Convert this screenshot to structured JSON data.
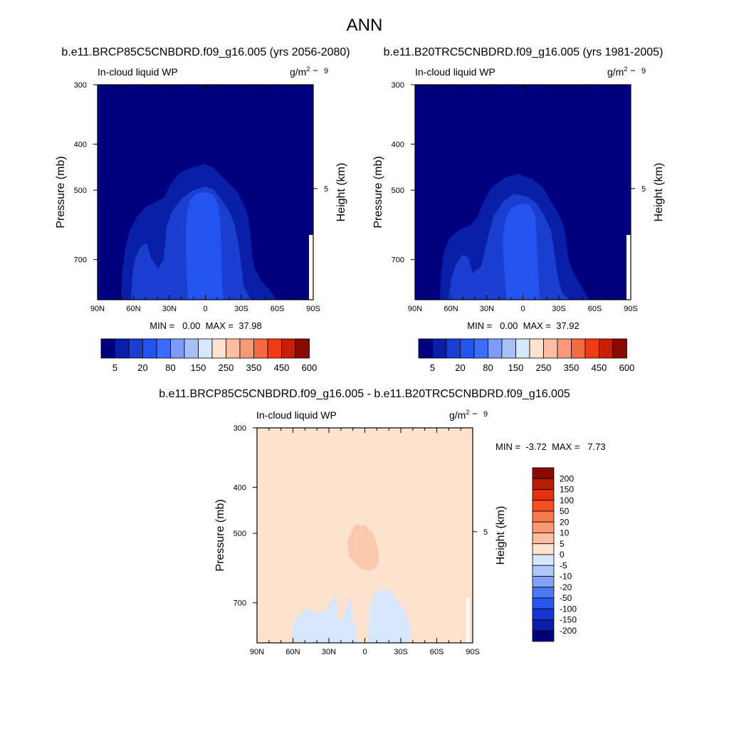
{
  "figure": {
    "title": "ANN",
    "diff_title": "b.e11.BRCP85C5CNBDRD.f09_g16.005 - b.e11.B20TRC5CNBDRD.f09_g16.005"
  },
  "chart_data": [
    {
      "type": "heatmap",
      "title": "b.e11.BRCP85C5CNBDRD.f09_g16.005 (yrs 2056-2080)",
      "left_label": "In-cloud liquid WP",
      "units": "g/m",
      "units_sup": "2",
      "ylabel": "Pressure (mb)",
      "ylabel_right": "Height (km)",
      "x_ticks": [
        "90N",
        "60N",
        "30N",
        "0",
        "30S",
        "60S",
        "90S"
      ],
      "y_ticks": [
        "300",
        "400",
        "500",
        "700"
      ],
      "y_ticks_right": [
        "9",
        "5"
      ],
      "min_label": "MIN =   0.00  MAX =  37.98",
      "min": 0.0,
      "max": 37.98,
      "colorbar_labels": [
        "5",
        "20",
        "80",
        "150",
        "250",
        "350",
        "450",
        "600"
      ],
      "levels": [
        0,
        5,
        10,
        20,
        50,
        80,
        100,
        150,
        200,
        250,
        300,
        350,
        400,
        450,
        500,
        600
      ]
    },
    {
      "type": "heatmap",
      "title": "b.e11.B20TRC5CNBDRD.f09_g16.005 (yrs 1981-2005)",
      "left_label": "In-cloud liquid WP",
      "units": "g/m",
      "units_sup": "2",
      "ylabel": "Pressure (mb)",
      "ylabel_right": "Height (km)",
      "x_ticks": [
        "90N",
        "60N",
        "30N",
        "0",
        "30S",
        "60S",
        "90S"
      ],
      "y_ticks": [
        "300",
        "400",
        "500",
        "700"
      ],
      "y_ticks_right": [
        "9",
        "5"
      ],
      "min_label": "MIN =   0.00  MAX =  37.92",
      "min": 0.0,
      "max": 37.92,
      "colorbar_labels": [
        "5",
        "20",
        "80",
        "150",
        "250",
        "350",
        "450",
        "600"
      ],
      "levels": [
        0,
        5,
        10,
        20,
        50,
        80,
        100,
        150,
        200,
        250,
        300,
        350,
        400,
        450,
        500,
        600
      ]
    },
    {
      "type": "heatmap",
      "left_label": "In-cloud liquid WP",
      "units": "g/m",
      "units_sup": "2",
      "ylabel": "Pressure (mb)",
      "ylabel_right": "Height (km)",
      "x_ticks": [
        "90N",
        "60N",
        "30N",
        "0",
        "30S",
        "60S",
        "90S"
      ],
      "y_ticks": [
        "300",
        "400",
        "500",
        "700"
      ],
      "y_ticks_right": [
        "9",
        "5"
      ],
      "min_label": "MIN =  -3.72  MAX =   7.73",
      "min": -3.72,
      "max": 7.73,
      "colorbar_labels": [
        "200",
        "150",
        "100",
        "50",
        "20",
        "10",
        "5",
        "0",
        "-5",
        "-10",
        "-20",
        "-50",
        "-100",
        "-150",
        "-200"
      ]
    }
  ],
  "palette": {
    "abs_colors": [
      "#00007f",
      "#0a1fa8",
      "#1a3fd0",
      "#2454f0",
      "#3c6cf8",
      "#7a9cf8",
      "#a8c0f8",
      "#d6e6fb",
      "#fde3cf",
      "#fbbea0",
      "#f89a78",
      "#f66a42",
      "#f03a14",
      "#c81e06",
      "#8a0a00"
    ],
    "diff_colors": [
      "#8a0a00",
      "#b81c06",
      "#e23010",
      "#f65020",
      "#f87848",
      "#fa9a72",
      "#fbbca2",
      "#fde3cf",
      "#d6e6fb",
      "#b0c6f8",
      "#84a2f6",
      "#4d76f2",
      "#2a56ee",
      "#1434d4",
      "#0a1fa8",
      "#00007f"
    ]
  }
}
